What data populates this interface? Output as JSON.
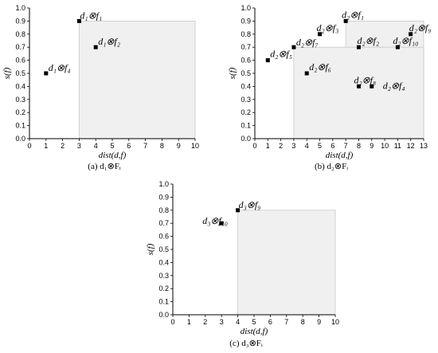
{
  "chart_data": [
    {
      "type": "scatter",
      "caption": "(a)   d₁⊗Fᵢ",
      "xlabel": "dist(d,f)",
      "ylabel": "s(f)",
      "xlim": [
        0,
        10
      ],
      "ylim": [
        0,
        1.0
      ],
      "xticks": [
        "0",
        "1",
        "2",
        "3",
        "4",
        "5",
        "6",
        "7",
        "8",
        "9",
        "10"
      ],
      "yticks": [
        "0.0",
        "0.1",
        "0.2",
        "0.3",
        "0.4",
        "0.5",
        "0.6",
        "0.7",
        "0.8",
        "0.9",
        "1.0"
      ],
      "grid": false,
      "shaded_regions": [
        {
          "x": [
            3,
            10
          ],
          "y": [
            0,
            0.9
          ]
        }
      ],
      "points": [
        {
          "label": "d₁⊗f₁",
          "x": 3,
          "y": 0.9
        },
        {
          "label": "d₁⊗f₂",
          "x": 4,
          "y": 0.7
        },
        {
          "label": "d₁⊗f₄",
          "x": 1,
          "y": 0.5
        }
      ]
    },
    {
      "type": "scatter",
      "caption": "(b)      d₂⊗Fᵢ",
      "xlabel": "dist(d,f)",
      "ylabel": "s(f)",
      "xlim": [
        0,
        13
      ],
      "ylim": [
        0,
        1.0
      ],
      "xticks": [
        "0",
        "1",
        "2",
        "3",
        "4",
        "5",
        "6",
        "7",
        "8",
        "9",
        "10",
        "11",
        "12",
        "13"
      ],
      "yticks": [
        "0.0",
        "0.1",
        "0.2",
        "0.3",
        "0.4",
        "0.5",
        "0.6",
        "0.7",
        "0.8",
        "0.9",
        "1.0"
      ],
      "grid": false,
      "shaded_regions": [
        {
          "x": [
            7,
            13
          ],
          "y": [
            0,
            0.9
          ]
        },
        {
          "x": [
            3,
            13
          ],
          "y": [
            0,
            0.7
          ]
        }
      ],
      "points": [
        {
          "label": "d₂⊗f₁",
          "x": 7,
          "y": 0.9
        },
        {
          "label": "d₂⊗f₂",
          "x": 8,
          "y": 0.7
        },
        {
          "label": "d₂⊗f₃",
          "x": 5,
          "y": 0.8
        },
        {
          "label": "d₂⊗f₄",
          "x": 9,
          "y": 0.4
        },
        {
          "label": "d₂⊗f₅",
          "x": 1,
          "y": 0.6
        },
        {
          "label": "d₂⊗f₆",
          "x": 4,
          "y": 0.5
        },
        {
          "label": "d₂⊗f₇",
          "x": 3,
          "y": 0.7
        },
        {
          "label": "d₂⊗f₈",
          "x": 8,
          "y": 0.4
        },
        {
          "label": "d₂⊗f₉",
          "x": 12,
          "y": 0.8
        },
        {
          "label": "d₂⊗f₁₀",
          "x": 11,
          "y": 0.7
        }
      ]
    },
    {
      "type": "scatter",
      "caption": "(c)   d₃⊗Fᵢ",
      "xlabel": "dist(d,f)",
      "ylabel": "s(f)",
      "xlim": [
        0,
        10
      ],
      "ylim": [
        0,
        1.0
      ],
      "xticks": [
        "0",
        "1",
        "2",
        "3",
        "4",
        "5",
        "6",
        "7",
        "8",
        "9",
        "10"
      ],
      "yticks": [
        "0.0",
        "0.1",
        "0.2",
        "0.3",
        "0.4",
        "0.5",
        "0.6",
        "0.7",
        "0.8",
        "0.9",
        "1.0"
      ],
      "grid": false,
      "shaded_regions": [
        {
          "x": [
            4,
            10
          ],
          "y": [
            0,
            0.8
          ]
        }
      ],
      "points": [
        {
          "label": "d₃⊗f₉",
          "x": 4,
          "y": 0.8
        },
        {
          "label": "d₃⊗f₁₀",
          "x": 3,
          "y": 0.7
        }
      ]
    }
  ]
}
